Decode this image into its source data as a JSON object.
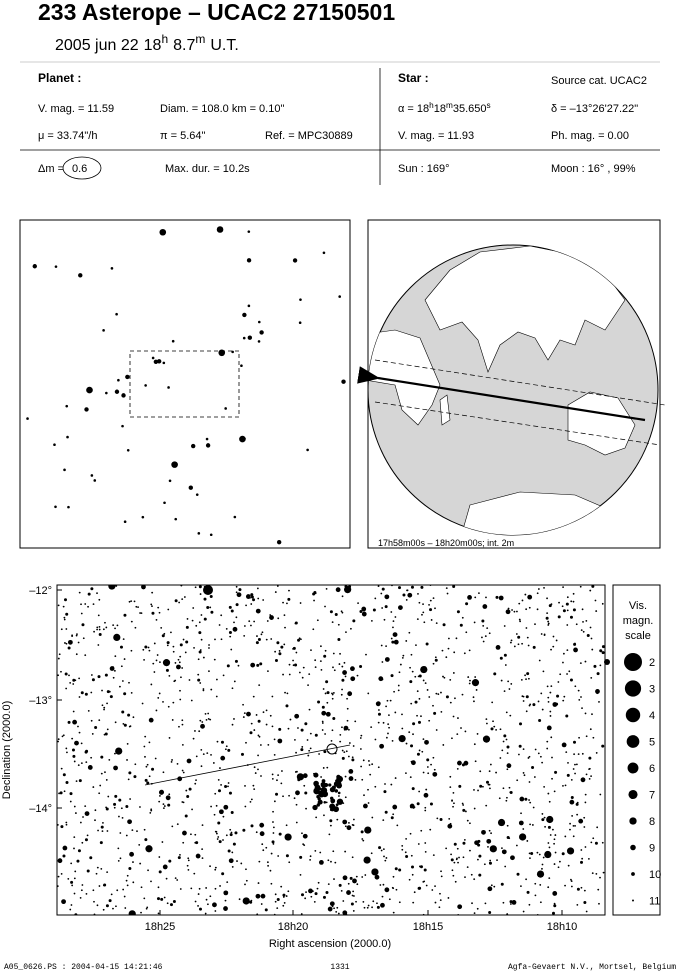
{
  "header": {
    "title": "233 Asterope  –  UCAC2 27150501",
    "time": [
      "2005 jun 22",
      "18",
      "h",
      "8.7",
      "m",
      "U.T."
    ]
  },
  "planet": {
    "heading": "Planet :",
    "vmag": "V. mag. = 11.59",
    "diam": "Diam. = 108.0 km = 0.10\"",
    "motion": "μ = 33.74\"/h",
    "parallax": "π = 5.64\"",
    "ref": "Ref. = MPC30889",
    "delta_m_label": "Δm =",
    "delta_m": "0.6",
    "max_dur": "Max. dur. = 10.2s"
  },
  "star": {
    "heading": "Star :",
    "source": "Source cat.  UCAC2",
    "alpha": [
      "α = 18",
      "h",
      "18",
      "m",
      "35.650",
      "s"
    ],
    "delta": "δ = –13°26'27.22\"",
    "vmag": "V. mag. = 11.93",
    "phmag": "Ph. mag. =  0.00",
    "sun": "Sun : 169°",
    "moon": "Moon :  16° , 99%"
  },
  "globe_panel": {
    "caption": "17h58m00s – 18h20m00s; int.  2m"
  },
  "field_panel": {
    "yticks": [
      "–12°",
      "–13°",
      "–14°"
    ],
    "xticks": [
      "18h25",
      "18h20",
      "18h15",
      "18h10"
    ],
    "xlabel": "Right ascension (2000.0)",
    "ylabel": "Declination (2000.0)"
  },
  "scale": {
    "title": [
      "Vis.",
      "magn.",
      "scale"
    ],
    "magnitudes": [
      2,
      3,
      4,
      5,
      6,
      7,
      8,
      9,
      10,
      11
    ]
  },
  "footer": {
    "file": "A05_0626.PS : 2004-04-15 14:21:46",
    "page": "1331",
    "company": "Agfa-Gevaert N.V., Mortsel, Belgium"
  }
}
